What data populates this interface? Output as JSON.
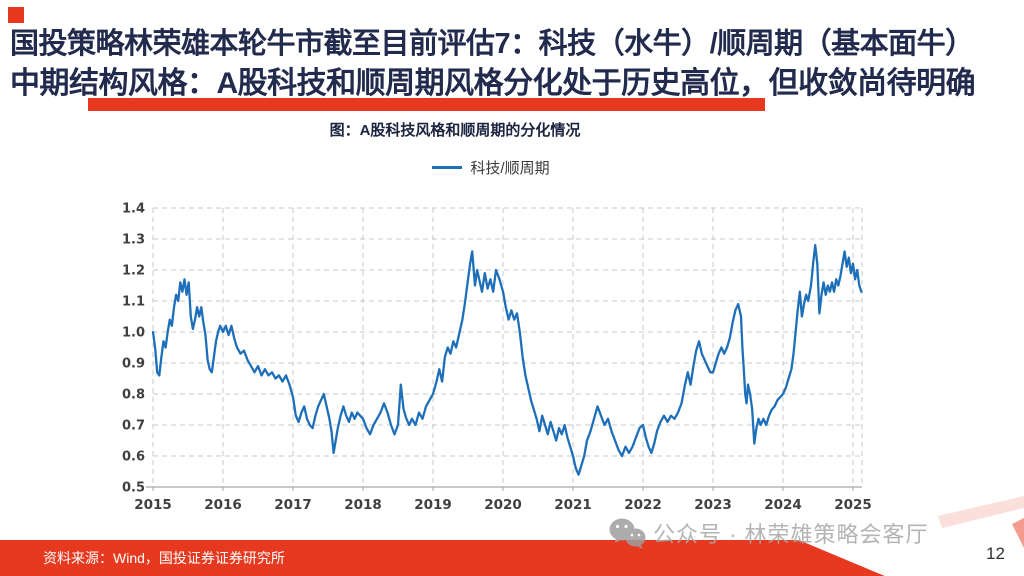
{
  "slide": {
    "title_line1": "国投策略林荣雄本轮牛市截至目前评估7：科技（水牛）/顺周期（基本面牛）",
    "title_line2": "中期结构风格：A股科技和顺周期风格分化处于历史高位，但收敛尚待明确",
    "title_color": "#222b4d",
    "accent_red": "#e6391f",
    "source_text": "资料来源：Wind，国投证券证券研究所",
    "watermark_text": "公众号 · 林荣雄策略会客厅",
    "page_number": "12"
  },
  "chart_data": {
    "type": "line",
    "title": "图：A股科技风格和顺周期的分化情况",
    "legend": [
      "科技/顺周期"
    ],
    "legend_position": "top",
    "line_color": "#1e6fba",
    "grid": "dashed",
    "xlabel": "",
    "ylabel": "",
    "xlim": [
      2015,
      2025.15
    ],
    "ylim": [
      0.5,
      1.4
    ],
    "x_ticks": [
      2015,
      2016,
      2017,
      2018,
      2019,
      2020,
      2021,
      2022,
      2023,
      2024,
      2025
    ],
    "y_ticks": [
      0.5,
      0.6,
      0.7,
      0.8,
      0.9,
      1.0,
      1.1,
      1.2,
      1.3,
      1.4
    ],
    "series": [
      {
        "name": "科技/顺周期",
        "points": [
          [
            2015.0,
            1.0
          ],
          [
            2015.03,
            0.95
          ],
          [
            2015.06,
            0.87
          ],
          [
            2015.09,
            0.86
          ],
          [
            2015.12,
            0.92
          ],
          [
            2015.15,
            0.97
          ],
          [
            2015.18,
            0.95
          ],
          [
            2015.21,
            1.0
          ],
          [
            2015.24,
            1.04
          ],
          [
            2015.27,
            1.02
          ],
          [
            2015.3,
            1.08
          ],
          [
            2015.33,
            1.12
          ],
          [
            2015.36,
            1.1
          ],
          [
            2015.39,
            1.16
          ],
          [
            2015.42,
            1.13
          ],
          [
            2015.45,
            1.17
          ],
          [
            2015.48,
            1.12
          ],
          [
            2015.51,
            1.16
          ],
          [
            2015.54,
            1.05
          ],
          [
            2015.57,
            1.01
          ],
          [
            2015.6,
            1.04
          ],
          [
            2015.63,
            1.08
          ],
          [
            2015.66,
            1.05
          ],
          [
            2015.69,
            1.08
          ],
          [
            2015.72,
            1.03
          ],
          [
            2015.75,
            0.99
          ],
          [
            2015.78,
            0.91
          ],
          [
            2015.81,
            0.88
          ],
          [
            2015.84,
            0.87
          ],
          [
            2015.87,
            0.92
          ],
          [
            2015.9,
            0.97
          ],
          [
            2015.93,
            1.0
          ],
          [
            2015.96,
            1.02
          ],
          [
            2016.0,
            1.0
          ],
          [
            2016.04,
            1.02
          ],
          [
            2016.08,
            0.99
          ],
          [
            2016.12,
            1.02
          ],
          [
            2016.16,
            0.98
          ],
          [
            2016.2,
            0.95
          ],
          [
            2016.25,
            0.93
          ],
          [
            2016.3,
            0.94
          ],
          [
            2016.35,
            0.91
          ],
          [
            2016.4,
            0.89
          ],
          [
            2016.45,
            0.87
          ],
          [
            2016.5,
            0.89
          ],
          [
            2016.55,
            0.86
          ],
          [
            2016.6,
            0.88
          ],
          [
            2016.65,
            0.86
          ],
          [
            2016.7,
            0.87
          ],
          [
            2016.75,
            0.85
          ],
          [
            2016.8,
            0.86
          ],
          [
            2016.85,
            0.84
          ],
          [
            2016.9,
            0.86
          ],
          [
            2016.95,
            0.83
          ],
          [
            2017.0,
            0.79
          ],
          [
            2017.04,
            0.73
          ],
          [
            2017.08,
            0.71
          ],
          [
            2017.12,
            0.74
          ],
          [
            2017.16,
            0.76
          ],
          [
            2017.2,
            0.72
          ],
          [
            2017.24,
            0.7
          ],
          [
            2017.28,
            0.69
          ],
          [
            2017.32,
            0.73
          ],
          [
            2017.36,
            0.76
          ],
          [
            2017.4,
            0.78
          ],
          [
            2017.44,
            0.8
          ],
          [
            2017.48,
            0.76
          ],
          [
            2017.52,
            0.72
          ],
          [
            2017.55,
            0.68
          ],
          [
            2017.58,
            0.61
          ],
          [
            2017.61,
            0.65
          ],
          [
            2017.64,
            0.69
          ],
          [
            2017.68,
            0.73
          ],
          [
            2017.72,
            0.76
          ],
          [
            2017.76,
            0.73
          ],
          [
            2017.8,
            0.71
          ],
          [
            2017.84,
            0.74
          ],
          [
            2017.88,
            0.72
          ],
          [
            2017.92,
            0.74
          ],
          [
            2017.96,
            0.73
          ],
          [
            2018.0,
            0.72
          ],
          [
            2018.05,
            0.69
          ],
          [
            2018.1,
            0.67
          ],
          [
            2018.15,
            0.7
          ],
          [
            2018.2,
            0.72
          ],
          [
            2018.25,
            0.74
          ],
          [
            2018.3,
            0.77
          ],
          [
            2018.35,
            0.74
          ],
          [
            2018.4,
            0.7
          ],
          [
            2018.45,
            0.67
          ],
          [
            2018.5,
            0.7
          ],
          [
            2018.54,
            0.83
          ],
          [
            2018.58,
            0.75
          ],
          [
            2018.62,
            0.72
          ],
          [
            2018.66,
            0.7
          ],
          [
            2018.7,
            0.72
          ],
          [
            2018.75,
            0.7
          ],
          [
            2018.8,
            0.74
          ],
          [
            2018.85,
            0.72
          ],
          [
            2018.9,
            0.76
          ],
          [
            2018.95,
            0.78
          ],
          [
            2019.0,
            0.8
          ],
          [
            2019.05,
            0.84
          ],
          [
            2019.09,
            0.88
          ],
          [
            2019.13,
            0.84
          ],
          [
            2019.17,
            0.92
          ],
          [
            2019.21,
            0.95
          ],
          [
            2019.25,
            0.93
          ],
          [
            2019.29,
            0.97
          ],
          [
            2019.33,
            0.95
          ],
          [
            2019.38,
            1.0
          ],
          [
            2019.42,
            1.04
          ],
          [
            2019.46,
            1.1
          ],
          [
            2019.5,
            1.17
          ],
          [
            2019.53,
            1.22
          ],
          [
            2019.56,
            1.26
          ],
          [
            2019.6,
            1.15
          ],
          [
            2019.63,
            1.2
          ],
          [
            2019.67,
            1.16
          ],
          [
            2019.7,
            1.13
          ],
          [
            2019.74,
            1.19
          ],
          [
            2019.78,
            1.14
          ],
          [
            2019.82,
            1.17
          ],
          [
            2019.86,
            1.13
          ],
          [
            2019.9,
            1.2
          ],
          [
            2019.95,
            1.17
          ],
          [
            2020.0,
            1.13
          ],
          [
            2020.04,
            1.08
          ],
          [
            2020.08,
            1.04
          ],
          [
            2020.12,
            1.07
          ],
          [
            2020.16,
            1.04
          ],
          [
            2020.2,
            1.06
          ],
          [
            2020.24,
            1.0
          ],
          [
            2020.28,
            0.92
          ],
          [
            2020.32,
            0.86
          ],
          [
            2020.36,
            0.82
          ],
          [
            2020.4,
            0.78
          ],
          [
            2020.44,
            0.75
          ],
          [
            2020.48,
            0.72
          ],
          [
            2020.52,
            0.68
          ],
          [
            2020.56,
            0.73
          ],
          [
            2020.6,
            0.7
          ],
          [
            2020.64,
            0.67
          ],
          [
            2020.68,
            0.71
          ],
          [
            2020.72,
            0.68
          ],
          [
            2020.76,
            0.65
          ],
          [
            2020.8,
            0.69
          ],
          [
            2020.84,
            0.67
          ],
          [
            2020.88,
            0.7
          ],
          [
            2020.92,
            0.66
          ],
          [
            2020.96,
            0.63
          ],
          [
            2021.0,
            0.6
          ],
          [
            2021.04,
            0.56
          ],
          [
            2021.08,
            0.54
          ],
          [
            2021.12,
            0.57
          ],
          [
            2021.16,
            0.6
          ],
          [
            2021.2,
            0.65
          ],
          [
            2021.25,
            0.68
          ],
          [
            2021.3,
            0.72
          ],
          [
            2021.35,
            0.76
          ],
          [
            2021.4,
            0.73
          ],
          [
            2021.45,
            0.7
          ],
          [
            2021.5,
            0.72
          ],
          [
            2021.55,
            0.68
          ],
          [
            2021.6,
            0.65
          ],
          [
            2021.65,
            0.62
          ],
          [
            2021.7,
            0.6
          ],
          [
            2021.75,
            0.63
          ],
          [
            2021.8,
            0.61
          ],
          [
            2021.85,
            0.63
          ],
          [
            2021.9,
            0.66
          ],
          [
            2021.95,
            0.69
          ],
          [
            2022.0,
            0.7
          ],
          [
            2022.04,
            0.66
          ],
          [
            2022.08,
            0.63
          ],
          [
            2022.12,
            0.61
          ],
          [
            2022.16,
            0.64
          ],
          [
            2022.2,
            0.68
          ],
          [
            2022.25,
            0.71
          ],
          [
            2022.3,
            0.73
          ],
          [
            2022.35,
            0.71
          ],
          [
            2022.4,
            0.73
          ],
          [
            2022.45,
            0.72
          ],
          [
            2022.5,
            0.74
          ],
          [
            2022.55,
            0.77
          ],
          [
            2022.6,
            0.83
          ],
          [
            2022.64,
            0.87
          ],
          [
            2022.68,
            0.83
          ],
          [
            2022.72,
            0.89
          ],
          [
            2022.76,
            0.94
          ],
          [
            2022.8,
            0.97
          ],
          [
            2022.84,
            0.93
          ],
          [
            2022.88,
            0.91
          ],
          [
            2022.92,
            0.89
          ],
          [
            2022.96,
            0.87
          ],
          [
            2023.0,
            0.87
          ],
          [
            2023.04,
            0.9
          ],
          [
            2023.08,
            0.93
          ],
          [
            2023.12,
            0.95
          ],
          [
            2023.16,
            0.93
          ],
          [
            2023.2,
            0.95
          ],
          [
            2023.24,
            0.98
          ],
          [
            2023.28,
            1.03
          ],
          [
            2023.32,
            1.07
          ],
          [
            2023.36,
            1.09
          ],
          [
            2023.4,
            1.05
          ],
          [
            2023.42,
            0.95
          ],
          [
            2023.44,
            0.88
          ],
          [
            2023.46,
            0.8
          ],
          [
            2023.48,
            0.77
          ],
          [
            2023.5,
            0.83
          ],
          [
            2023.53,
            0.8
          ],
          [
            2023.56,
            0.75
          ],
          [
            2023.59,
            0.64
          ],
          [
            2023.62,
            0.69
          ],
          [
            2023.65,
            0.72
          ],
          [
            2023.68,
            0.7
          ],
          [
            2023.72,
            0.72
          ],
          [
            2023.76,
            0.7
          ],
          [
            2023.8,
            0.73
          ],
          [
            2023.84,
            0.75
          ],
          [
            2023.88,
            0.76
          ],
          [
            2023.92,
            0.78
          ],
          [
            2023.96,
            0.79
          ],
          [
            2024.0,
            0.8
          ],
          [
            2024.04,
            0.82
          ],
          [
            2024.08,
            0.85
          ],
          [
            2024.12,
            0.88
          ],
          [
            2024.15,
            0.93
          ],
          [
            2024.18,
            1.0
          ],
          [
            2024.21,
            1.07
          ],
          [
            2024.24,
            1.13
          ],
          [
            2024.27,
            1.05
          ],
          [
            2024.3,
            1.09
          ],
          [
            2024.33,
            1.12
          ],
          [
            2024.36,
            1.1
          ],
          [
            2024.4,
            1.15
          ],
          [
            2024.43,
            1.22
          ],
          [
            2024.46,
            1.28
          ],
          [
            2024.49,
            1.22
          ],
          [
            2024.52,
            1.06
          ],
          [
            2024.55,
            1.12
          ],
          [
            2024.58,
            1.16
          ],
          [
            2024.61,
            1.12
          ],
          [
            2024.64,
            1.15
          ],
          [
            2024.67,
            1.13
          ],
          [
            2024.7,
            1.16
          ],
          [
            2024.73,
            1.13
          ],
          [
            2024.76,
            1.17
          ],
          [
            2024.79,
            1.15
          ],
          [
            2024.82,
            1.18
          ],
          [
            2024.85,
            1.22
          ],
          [
            2024.88,
            1.26
          ],
          [
            2024.91,
            1.21
          ],
          [
            2024.94,
            1.24
          ],
          [
            2024.97,
            1.19
          ],
          [
            2025.0,
            1.22
          ],
          [
            2025.03,
            1.17
          ],
          [
            2025.06,
            1.2
          ],
          [
            2025.09,
            1.15
          ],
          [
            2025.12,
            1.13
          ]
        ]
      }
    ]
  }
}
